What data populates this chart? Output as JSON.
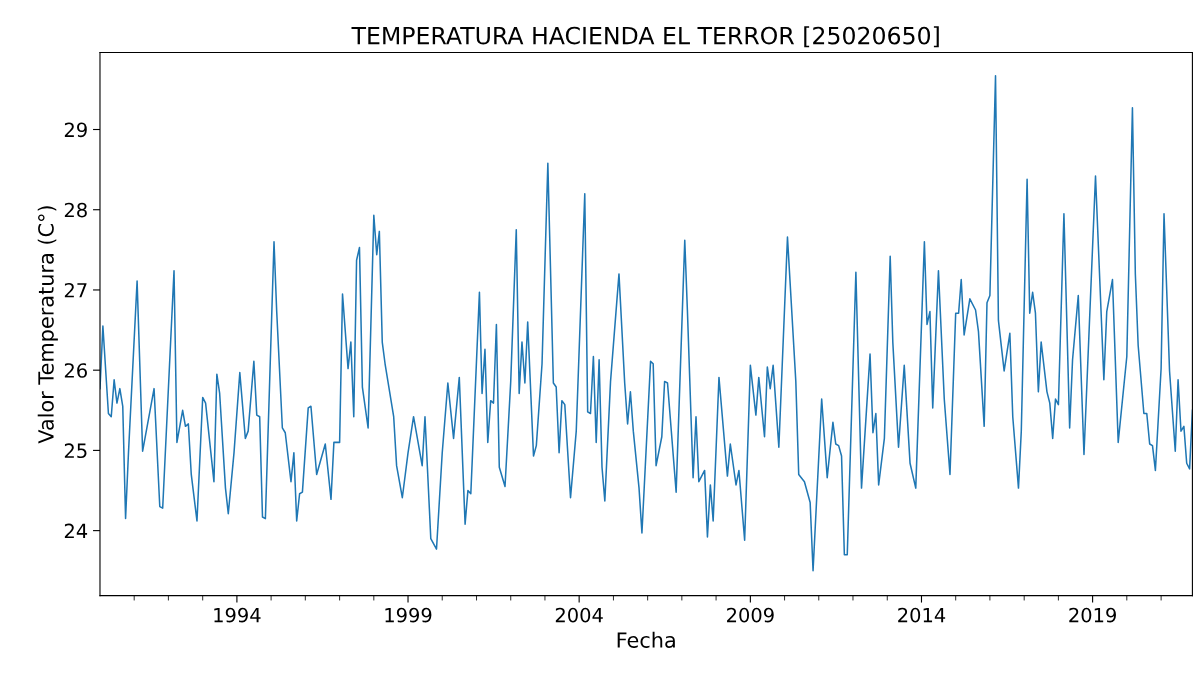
{
  "chart_data": {
    "type": "line",
    "title": "TEMPERATURA HACIENDA EL TERROR [25020650]",
    "xlabel": "Fecha",
    "ylabel": "Valor Temperatura (C°)",
    "series": [
      {
        "color": "#1f77b4",
        "x": [
          "1990-01",
          "1990-02",
          "1990-04",
          "1990-05",
          "1990-06",
          "1990-07",
          "1990-08",
          "1990-09",
          "1990-10",
          "1990-11",
          "1991-02",
          "1991-04",
          "1991-08",
          "1991-10",
          "1991-11",
          "1992-03",
          "1992-04",
          "1992-06",
          "1992-07",
          "1992-08",
          "1992-09",
          "1992-11",
          "1993-01",
          "1993-02",
          "1993-05",
          "1993-06",
          "1993-07",
          "1993-09",
          "1993-10",
          "1993-12",
          "1994-02",
          "1994-04",
          "1994-05",
          "1994-07",
          "1994-08",
          "1994-09",
          "1994-10",
          "1994-11",
          "1995-02",
          "1995-03",
          "1995-05",
          "1995-06",
          "1995-08",
          "1995-09",
          "1995-10",
          "1995-11",
          "1995-12",
          "1996-02",
          "1996-03",
          "1996-05",
          "1996-08",
          "1996-10",
          "1996-11",
          "1997-01",
          "1997-02",
          "1997-04",
          "1997-05",
          "1997-06",
          "1997-07",
          "1997-08",
          "1997-09",
          "1997-11",
          "1998-01",
          "1998-02",
          "1998-03",
          "1998-04",
          "1998-05",
          "1998-08",
          "1998-09",
          "1998-11",
          "1999-01",
          "1999-03",
          "1999-06",
          "1999-07",
          "1999-09",
          "1999-11",
          "2000-01",
          "2000-03",
          "2000-05",
          "2000-07",
          "2000-09",
          "2000-10",
          "2000-11",
          "2001-02",
          "2001-03",
          "2001-04",
          "2001-05",
          "2001-06",
          "2001-07",
          "2001-08",
          "2001-09",
          "2001-11",
          "2002-01",
          "2002-03",
          "2002-04",
          "2002-05",
          "2002-06",
          "2002-07",
          "2002-09",
          "2002-10",
          "2002-12",
          "2003-02",
          "2003-04",
          "2003-05",
          "2003-06",
          "2003-07",
          "2003-08",
          "2003-10",
          "2003-12",
          "2004-03",
          "2004-04",
          "2004-05",
          "2004-06",
          "2004-07",
          "2004-08",
          "2004-09",
          "2004-10",
          "2004-12",
          "2005-03",
          "2005-05",
          "2005-06",
          "2005-07",
          "2005-08",
          "2005-10",
          "2005-11",
          "2006-02",
          "2006-03",
          "2006-04",
          "2006-06",
          "2006-07",
          "2006-08",
          "2006-11",
          "2007-02",
          "2007-03",
          "2007-05",
          "2007-06",
          "2007-07",
          "2007-09",
          "2007-10",
          "2007-11",
          "2007-12",
          "2008-02",
          "2008-05",
          "2008-06",
          "2008-08",
          "2008-09",
          "2008-11",
          "2009-01",
          "2009-03",
          "2009-04",
          "2009-06",
          "2009-07",
          "2009-08",
          "2009-09",
          "2009-11",
          "2010-02",
          "2010-05",
          "2010-06",
          "2010-08",
          "2010-10",
          "2010-11",
          "2011-02",
          "2011-04",
          "2011-06",
          "2011-07",
          "2011-08",
          "2011-09",
          "2011-10",
          "2011-11",
          "2012-02",
          "2012-04",
          "2012-07",
          "2012-08",
          "2012-09",
          "2012-10",
          "2012-12",
          "2013-02",
          "2013-03",
          "2013-05",
          "2013-07",
          "2013-09",
          "2013-11",
          "2014-02",
          "2014-03",
          "2014-04",
          "2014-05",
          "2014-07",
          "2014-09",
          "2014-11",
          "2015-01",
          "2015-02",
          "2015-03",
          "2015-04",
          "2015-06",
          "2015-08",
          "2015-09",
          "2015-11",
          "2015-12",
          "2016-01",
          "2016-03",
          "2016-04",
          "2016-05",
          "2016-06",
          "2016-08",
          "2016-09",
          "2016-11",
          "2016-12",
          "2017-02",
          "2017-03",
          "2017-04",
          "2017-05",
          "2017-06",
          "2017-07",
          "2017-09",
          "2017-10",
          "2017-11",
          "2017-12",
          "2018-01",
          "2018-03",
          "2018-05",
          "2018-06",
          "2018-08",
          "2018-10",
          "2019-02",
          "2019-05",
          "2019-06",
          "2019-08",
          "2019-10",
          "2020-01",
          "2020-03",
          "2020-04",
          "2020-05",
          "2020-07",
          "2020-08",
          "2020-09",
          "2020-10",
          "2020-11",
          "2021-01",
          "2021-02",
          "2021-04",
          "2021-06",
          "2021-07",
          "2021-08",
          "2021-09",
          "2021-10",
          "2021-11",
          "2021-12"
        ],
        "values": [
          25.77,
          26.55,
          25.46,
          25.42,
          25.88,
          25.59,
          25.77,
          25.55,
          24.15,
          24.97,
          27.11,
          24.99,
          25.77,
          24.3,
          24.28,
          27.24,
          25.1,
          25.5,
          25.3,
          25.33,
          24.7,
          24.12,
          25.66,
          25.59,
          24.61,
          25.95,
          25.71,
          24.53,
          24.21,
          24.97,
          25.97,
          25.15,
          25.24,
          26.11,
          25.44,
          25.42,
          24.17,
          24.15,
          27.6,
          26.75,
          25.28,
          25.22,
          24.61,
          24.97,
          24.12,
          24.46,
          24.48,
          25.53,
          25.55,
          24.7,
          25.08,
          24.39,
          25.1,
          25.1,
          26.95,
          26.02,
          26.35,
          25.42,
          27.37,
          27.53,
          25.79,
          25.28,
          27.93,
          27.44,
          27.73,
          26.35,
          26.08,
          25.42,
          24.81,
          24.41,
          24.97,
          25.42,
          24.81,
          25.42,
          23.9,
          23.77,
          24.97,
          25.84,
          25.15,
          25.91,
          24.08,
          24.5,
          24.46,
          26.97,
          25.71,
          26.26,
          25.1,
          25.62,
          25.59,
          26.57,
          24.79,
          24.55,
          25.86,
          27.75,
          25.71,
          26.35,
          25.84,
          26.6,
          24.93,
          25.06,
          26.08,
          28.58,
          25.84,
          25.79,
          24.97,
          25.62,
          25.57,
          24.41,
          25.24,
          28.2,
          25.48,
          25.46,
          26.17,
          25.1,
          26.13,
          24.79,
          24.37,
          25.86,
          27.2,
          25.84,
          25.33,
          25.73,
          25.24,
          24.53,
          23.97,
          26.11,
          26.08,
          24.81,
          25.17,
          25.86,
          25.84,
          24.48,
          27.62,
          26.75,
          24.66,
          25.42,
          24.61,
          24.75,
          23.92,
          24.57,
          24.12,
          25.91,
          24.68,
          25.08,
          24.57,
          24.75,
          23.88,
          26.06,
          25.44,
          25.91,
          25.17,
          26.04,
          25.77,
          26.06,
          25.04,
          27.66,
          25.86,
          24.7,
          24.61,
          24.35,
          23.5,
          25.64,
          24.66,
          25.35,
          25.08,
          25.06,
          24.93,
          23.7,
          23.7,
          27.22,
          24.53,
          26.2,
          25.22,
          25.46,
          24.57,
          25.15,
          27.42,
          26.35,
          25.04,
          26.06,
          24.84,
          24.53,
          27.6,
          26.57,
          26.73,
          25.53,
          27.24,
          25.64,
          24.7,
          26.71,
          26.71,
          27.13,
          26.44,
          26.89,
          26.75,
          26.48,
          25.3,
          26.84,
          26.93,
          29.67,
          26.62,
          26.31,
          25.99,
          26.46,
          25.42,
          24.53,
          25.24,
          28.38,
          26.71,
          26.97,
          26.71,
          25.73,
          26.35,
          25.73,
          25.59,
          25.15,
          25.64,
          25.57,
          27.95,
          25.28,
          26.13,
          26.93,
          24.95,
          28.42,
          25.88,
          26.73,
          27.13,
          25.1,
          26.17,
          29.27,
          27.2,
          26.31,
          25.46,
          25.46,
          25.08,
          25.06,
          24.75,
          26.02,
          27.95,
          25.99,
          24.99,
          25.88,
          25.24,
          25.3,
          24.84,
          24.77,
          25.5
        ]
      }
    ],
    "xlim": [
      "1990-01",
      "2021-12"
    ],
    "xticks": [
      {
        "value": "1991-01",
        "label": null
      },
      {
        "value": "1992-01",
        "label": null
      },
      {
        "value": "1993-01",
        "label": null
      },
      {
        "value": "1994-01",
        "label": "1994"
      },
      {
        "value": "1995-01",
        "label": null
      },
      {
        "value": "1996-01",
        "label": null
      },
      {
        "value": "1997-01",
        "label": null
      },
      {
        "value": "1998-01",
        "label": null
      },
      {
        "value": "1999-01",
        "label": "1999"
      },
      {
        "value": "2000-01",
        "label": null
      },
      {
        "value": "2001-01",
        "label": null
      },
      {
        "value": "2002-01",
        "label": null
      },
      {
        "value": "2003-01",
        "label": null
      },
      {
        "value": "2004-01",
        "label": "2004"
      },
      {
        "value": "2005-01",
        "label": null
      },
      {
        "value": "2006-01",
        "label": null
      },
      {
        "value": "2007-01",
        "label": null
      },
      {
        "value": "2008-01",
        "label": null
      },
      {
        "value": "2009-01",
        "label": "2009"
      },
      {
        "value": "2010-01",
        "label": null
      },
      {
        "value": "2011-01",
        "label": null
      },
      {
        "value": "2012-01",
        "label": null
      },
      {
        "value": "2013-01",
        "label": null
      },
      {
        "value": "2014-01",
        "label": "2014"
      },
      {
        "value": "2015-01",
        "label": null
      },
      {
        "value": "2016-01",
        "label": null
      },
      {
        "value": "2017-01",
        "label": null
      },
      {
        "value": "2018-01",
        "label": null
      },
      {
        "value": "2019-01",
        "label": "2019"
      },
      {
        "value": "2020-01",
        "label": null
      },
      {
        "value": "2021-01",
        "label": null
      }
    ],
    "ylim": [
      23.19,
      29.96
    ],
    "yticks": [
      24,
      25,
      26,
      27,
      28,
      29
    ],
    "grid": false,
    "legend": false,
    "marker": "none",
    "line_style": "solid"
  }
}
